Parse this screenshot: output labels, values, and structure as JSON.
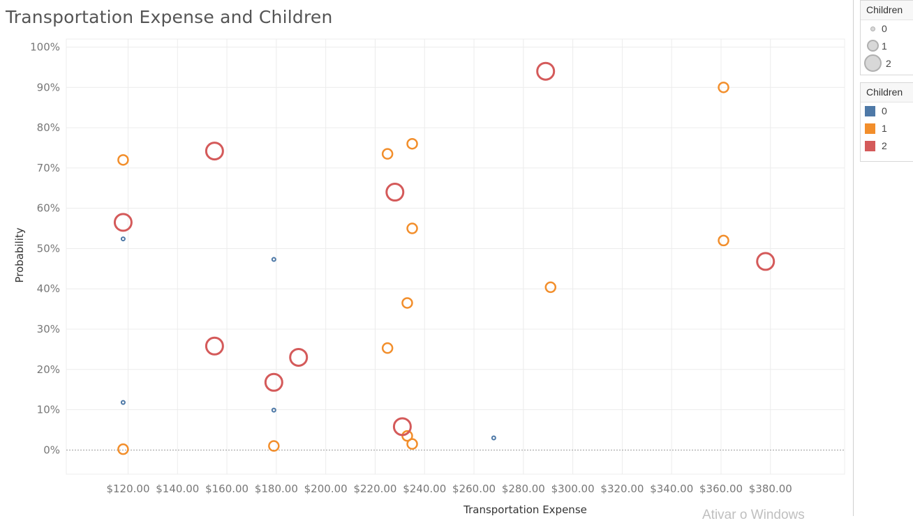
{
  "chart_data": {
    "type": "scatter",
    "title": "Transportation Expense and Children",
    "xlabel": "Transportation Expense",
    "ylabel": "Probability",
    "xlim": [
      95,
      410
    ],
    "ylim": [
      -0.06,
      1.02
    ],
    "x_ticks": [
      {
        "value": 120,
        "label": "$120.00"
      },
      {
        "value": 140,
        "label": "$140.00"
      },
      {
        "value": 160,
        "label": "$160.00"
      },
      {
        "value": 180,
        "label": "$180.00"
      },
      {
        "value": 200,
        "label": "$200.00"
      },
      {
        "value": 220,
        "label": "$220.00"
      },
      {
        "value": 240,
        "label": "$240.00"
      },
      {
        "value": 260,
        "label": "$260.00"
      },
      {
        "value": 280,
        "label": "$280.00"
      },
      {
        "value": 300,
        "label": "$300.00"
      },
      {
        "value": 320,
        "label": "$320.00"
      },
      {
        "value": 340,
        "label": "$340.00"
      },
      {
        "value": 360,
        "label": "$360.00"
      },
      {
        "value": 380,
        "label": "$380.00"
      }
    ],
    "y_ticks": [
      {
        "value": 0,
        "label": "0%"
      },
      {
        "value": 0.1,
        "label": "10%"
      },
      {
        "value": 0.2,
        "label": "20%"
      },
      {
        "value": 0.3,
        "label": "30%"
      },
      {
        "value": 0.4,
        "label": "40%"
      },
      {
        "value": 0.5,
        "label": "50%"
      },
      {
        "value": 0.6,
        "label": "60%"
      },
      {
        "value": 0.7,
        "label": "70%"
      },
      {
        "value": 0.8,
        "label": "80%"
      },
      {
        "value": 0.9,
        "label": "90%"
      },
      {
        "value": 1.0,
        "label": "100%"
      }
    ],
    "grid": true,
    "zero_line": "dotted",
    "series": [
      {
        "name": "0",
        "color": "#4e79a7",
        "points": [
          {
            "x": 118,
            "y": 0.524
          },
          {
            "x": 118,
            "y": 0.118
          },
          {
            "x": 179,
            "y": 0.473
          },
          {
            "x": 179,
            "y": 0.099
          },
          {
            "x": 268,
            "y": 0.03
          }
        ]
      },
      {
        "name": "1",
        "color": "#f28e2b",
        "points": [
          {
            "x": 118,
            "y": 0.72
          },
          {
            "x": 118,
            "y": 0.002
          },
          {
            "x": 179,
            "y": 0.01
          },
          {
            "x": 225,
            "y": 0.735
          },
          {
            "x": 225,
            "y": 0.253
          },
          {
            "x": 233,
            "y": 0.365
          },
          {
            "x": 233,
            "y": 0.035
          },
          {
            "x": 235,
            "y": 0.76
          },
          {
            "x": 235,
            "y": 0.55
          },
          {
            "x": 235,
            "y": 0.015
          },
          {
            "x": 291,
            "y": 0.404
          },
          {
            "x": 361,
            "y": 0.9
          },
          {
            "x": 361,
            "y": 0.52
          }
        ]
      },
      {
        "name": "2",
        "color": "#d45a5a",
        "points": [
          {
            "x": 118,
            "y": 0.565
          },
          {
            "x": 155,
            "y": 0.742
          },
          {
            "x": 155,
            "y": 0.258
          },
          {
            "x": 179,
            "y": 0.168
          },
          {
            "x": 189,
            "y": 0.23
          },
          {
            "x": 228,
            "y": 0.64
          },
          {
            "x": 231,
            "y": 0.058
          },
          {
            "x": 289,
            "y": 0.94
          },
          {
            "x": 378,
            "y": 0.468
          }
        ]
      }
    ],
    "legends": {
      "size": {
        "title": "Children",
        "items": [
          "0",
          "1",
          "2"
        ]
      },
      "color": {
        "title": "Children",
        "items": [
          {
            "label": "0",
            "color": "#4e79a7"
          },
          {
            "label": "1",
            "color": "#f28e2b"
          },
          {
            "label": "2",
            "color": "#d45a5a"
          }
        ]
      }
    }
  },
  "watermark": "Ativar o Windows"
}
